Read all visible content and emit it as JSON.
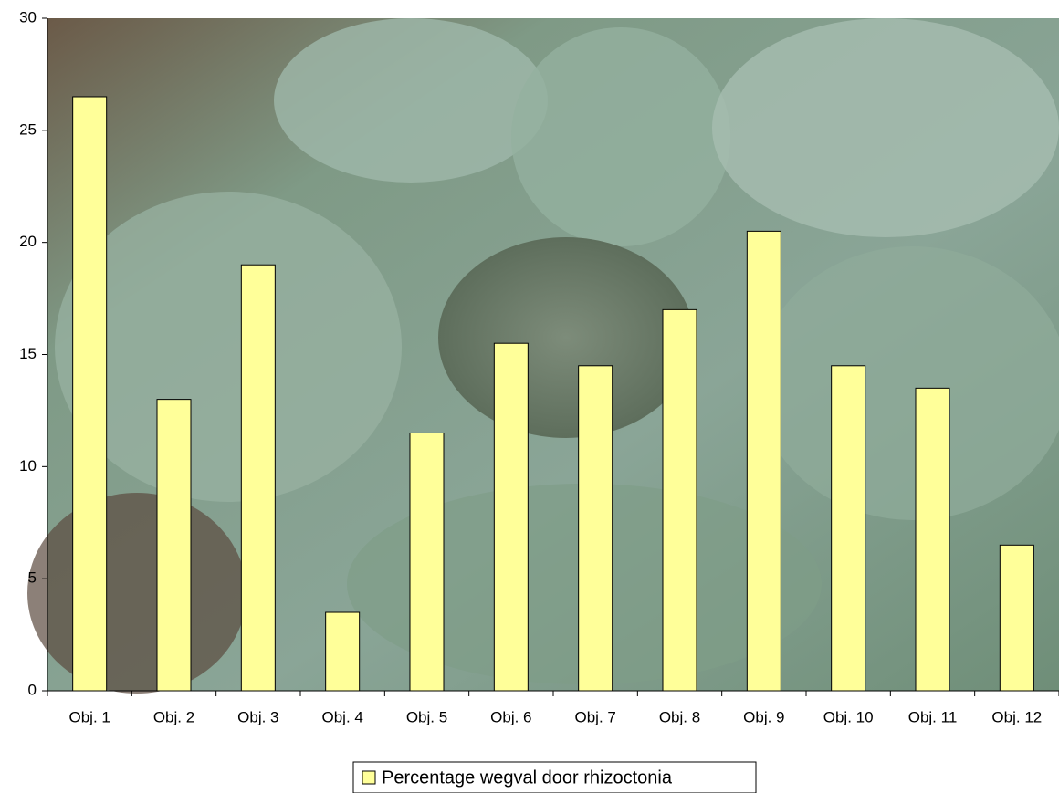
{
  "chart_data": {
    "type": "bar",
    "categories": [
      "Obj. 1",
      "Obj. 2",
      "Obj. 3",
      "Obj. 4",
      "Obj. 5",
      "Obj. 6",
      "Obj. 7",
      "Obj. 8",
      "Obj. 9",
      "Obj. 10",
      "Obj. 11",
      "Obj. 12"
    ],
    "series": [
      {
        "name": "Percentage wegval door rhizoctonia",
        "color": "#ffff99",
        "values": [
          26.5,
          13,
          19,
          3.5,
          11.5,
          15.5,
          14.5,
          17,
          20.5,
          14.5,
          13.5,
          6.5
        ]
      }
    ],
    "ylim": [
      0,
      30
    ],
    "yticks": [
      0,
      5,
      10,
      15,
      20,
      25,
      30
    ],
    "legend": "bottom"
  }
}
